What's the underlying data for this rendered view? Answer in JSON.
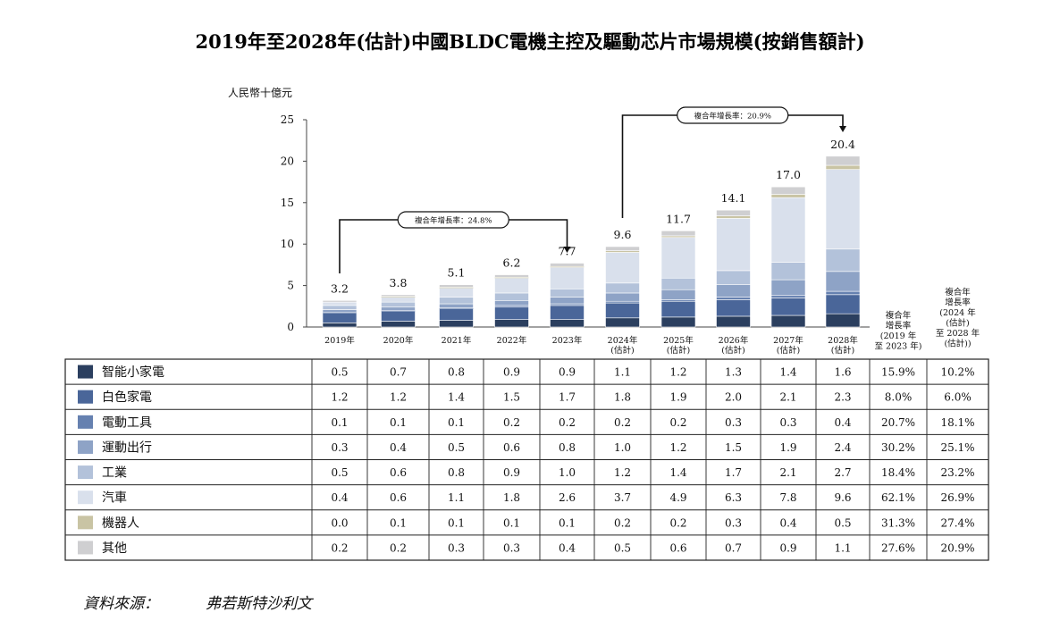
{
  "title": "2019年至2028年(估計)中國BLDC電機主控及驅動芯片市場規模(按銷售額計)",
  "source": {
    "label": "資料來源：",
    "value": "弗若斯特沙利文"
  },
  "chart_data": {
    "type": "bar",
    "stacked": true,
    "ylabel": "人民幣十億元",
    "ylim": [
      0,
      25
    ],
    "yticks": [
      0,
      5,
      10,
      15,
      20,
      25
    ],
    "grid": false,
    "categories": [
      "2019年",
      "2020年",
      "2021年",
      "2022年",
      "2023年",
      "2024年(估計)",
      "2025年(估計)",
      "2026年(估計)",
      "2027年(估計)",
      "2028年(估計)"
    ],
    "category_lines": [
      [
        "2019年"
      ],
      [
        "2020年"
      ],
      [
        "2021年"
      ],
      [
        "2022年"
      ],
      [
        "2023年"
      ],
      [
        "2024年",
        "(估計)"
      ],
      [
        "2025年",
        "(估計)"
      ],
      [
        "2026年",
        "(估計)"
      ],
      [
        "2027年",
        "(估計)"
      ],
      [
        "2028年",
        "(估計)"
      ]
    ],
    "totals": [
      "3.2",
      "3.8",
      "5.1",
      "6.2",
      "7.7",
      "9.6",
      "11.7",
      "14.1",
      "17.0",
      "20.4"
    ],
    "series": [
      {
        "name": "智能小家電",
        "color": "#2b3f5f",
        "values": [
          0.5,
          0.7,
          0.8,
          0.9,
          0.9,
          1.1,
          1.2,
          1.3,
          1.4,
          1.6
        ],
        "labels": [
          "0.5",
          "0.7",
          "0.8",
          "0.9",
          "0.9",
          "1.1",
          "1.2",
          "1.3",
          "1.4",
          "1.6"
        ],
        "cagr_2019_2023": "15.9%",
        "cagr_2024_2028": "10.2%"
      },
      {
        "name": "白色家電",
        "color": "#4a6699",
        "values": [
          1.2,
          1.2,
          1.4,
          1.5,
          1.7,
          1.8,
          1.9,
          2.0,
          2.1,
          2.3
        ],
        "labels": [
          "1.2",
          "1.2",
          "1.4",
          "1.5",
          "1.7",
          "1.8",
          "1.9",
          "2.0",
          "2.1",
          "2.3"
        ],
        "cagr_2019_2023": "8.0%",
        "cagr_2024_2028": "6.0%"
      },
      {
        "name": "電動工具",
        "color": "#6681b0",
        "values": [
          0.1,
          0.1,
          0.1,
          0.2,
          0.2,
          0.2,
          0.2,
          0.3,
          0.3,
          0.4
        ],
        "labels": [
          "0.1",
          "0.1",
          "0.1",
          "0.2",
          "0.2",
          "0.2",
          "0.2",
          "0.3",
          "0.3",
          "0.4"
        ],
        "cagr_2019_2023": "20.7%",
        "cagr_2024_2028": "18.1%"
      },
      {
        "name": "運動出行",
        "color": "#8ea3c6",
        "values": [
          0.3,
          0.4,
          0.5,
          0.6,
          0.8,
          1.0,
          1.2,
          1.5,
          1.9,
          2.4
        ],
        "labels": [
          "0.3",
          "0.4",
          "0.5",
          "0.6",
          "0.8",
          "1.0",
          "1.2",
          "1.5",
          "1.9",
          "2.4"
        ],
        "cagr_2019_2023": "30.2%",
        "cagr_2024_2028": "25.1%"
      },
      {
        "name": "工業",
        "color": "#b3c2da",
        "values": [
          0.5,
          0.6,
          0.8,
          0.9,
          1.0,
          1.2,
          1.4,
          1.7,
          2.1,
          2.7
        ],
        "labels": [
          "0.5",
          "0.6",
          "0.8",
          "0.9",
          "1.0",
          "1.2",
          "1.4",
          "1.7",
          "2.1",
          "2.7"
        ],
        "cagr_2019_2023": "18.4%",
        "cagr_2024_2028": "23.2%"
      },
      {
        "name": "汽車",
        "color": "#d9e0ec",
        "values": [
          0.4,
          0.6,
          1.1,
          1.8,
          2.6,
          3.7,
          4.9,
          6.3,
          7.8,
          9.6
        ],
        "labels": [
          "0.4",
          "0.6",
          "1.1",
          "1.8",
          "2.6",
          "3.7",
          "4.9",
          "6.3",
          "7.8",
          "9.6"
        ],
        "cagr_2019_2023": "62.1%",
        "cagr_2024_2028": "26.9%"
      },
      {
        "name": "機器人",
        "color": "#c9c4a4",
        "values": [
          0.0,
          0.1,
          0.1,
          0.1,
          0.1,
          0.2,
          0.2,
          0.3,
          0.4,
          0.5
        ],
        "labels": [
          "0.0",
          "0.1",
          "0.1",
          "0.1",
          "0.1",
          "0.2",
          "0.2",
          "0.3",
          "0.4",
          "0.5"
        ],
        "cagr_2019_2023": "31.3%",
        "cagr_2024_2028": "27.4%"
      },
      {
        "name": "其他",
        "color": "#cfcfd1",
        "values": [
          0.2,
          0.2,
          0.3,
          0.3,
          0.4,
          0.5,
          0.6,
          0.7,
          0.9,
          1.1
        ],
        "labels": [
          "0.2",
          "0.2",
          "0.3",
          "0.3",
          "0.4",
          "0.5",
          "0.6",
          "0.7",
          "0.9",
          "1.1"
        ],
        "cagr_2019_2023": "27.6%",
        "cagr_2024_2028": "20.9%"
      }
    ],
    "cagr_headers": {
      "hist": [
        "複合年",
        "增長率",
        "(2019 年",
        "至 2023 年)"
      ],
      "forecast": [
        "複合年",
        "增長率",
        "(2024 年",
        "(估計)",
        "至 2028 年",
        "(估計))"
      ]
    },
    "annotations": [
      {
        "text": "複合年增長率：24.8%",
        "from": "2019年",
        "to": "2023年"
      },
      {
        "text": "複合年增長率：20.9%",
        "from": "2024年(估計)",
        "to": "2028年(估計)"
      }
    ]
  }
}
